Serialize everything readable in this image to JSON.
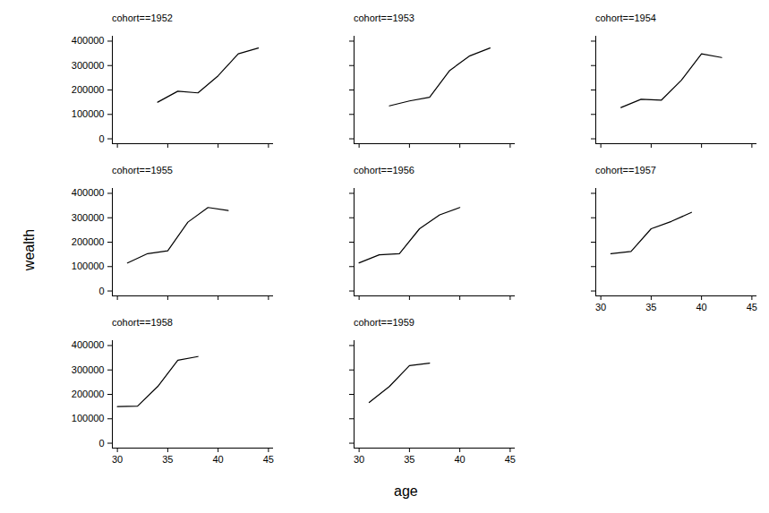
{
  "chart_data": {
    "type": "line",
    "x_label": "age",
    "y_label": "wealth",
    "xlim": [
      29.5,
      45.5
    ],
    "xticks": [
      30,
      35,
      40,
      45
    ],
    "ylim": [
      -20000,
      420000
    ],
    "yticks": [
      0,
      100000,
      200000,
      300000,
      400000
    ],
    "color": "#000000",
    "panels": [
      {
        "title": "cohort==1952",
        "x": [
          34,
          36,
          38,
          40,
          42,
          44
        ],
        "values": [
          150000,
          195000,
          188000,
          258000,
          348000,
          372000
        ]
      },
      {
        "title": "cohort==1953",
        "x": [
          33,
          35,
          37,
          39,
          41,
          43
        ],
        "values": [
          135000,
          155000,
          170000,
          280000,
          340000,
          372000
        ]
      },
      {
        "title": "cohort==1954",
        "x": [
          32,
          34,
          36,
          38,
          40,
          42
        ],
        "values": [
          128000,
          162000,
          158000,
          240000,
          348000,
          333000
        ]
      },
      {
        "title": "cohort==1955",
        "x": [
          31,
          33,
          35,
          37,
          39,
          41
        ],
        "values": [
          115000,
          153000,
          165000,
          282000,
          342000,
          330000
        ]
      },
      {
        "title": "cohort==1956",
        "x": [
          30,
          32,
          34,
          36,
          38,
          40
        ],
        "values": [
          115000,
          148000,
          153000,
          255000,
          312000,
          342000
        ]
      },
      {
        "title": "cohort==1957",
        "x": [
          31,
          33,
          35,
          37,
          39
        ],
        "values": [
          153000,
          162000,
          255000,
          285000,
          322000
        ]
      },
      {
        "title": "cohort==1958",
        "x": [
          30,
          32,
          34,
          36,
          38
        ],
        "values": [
          150000,
          152000,
          232000,
          340000,
          355000
        ]
      },
      {
        "title": "cohort==1959",
        "x": [
          31,
          33,
          35,
          37
        ],
        "values": [
          167000,
          232000,
          318000,
          328000
        ]
      }
    ]
  }
}
